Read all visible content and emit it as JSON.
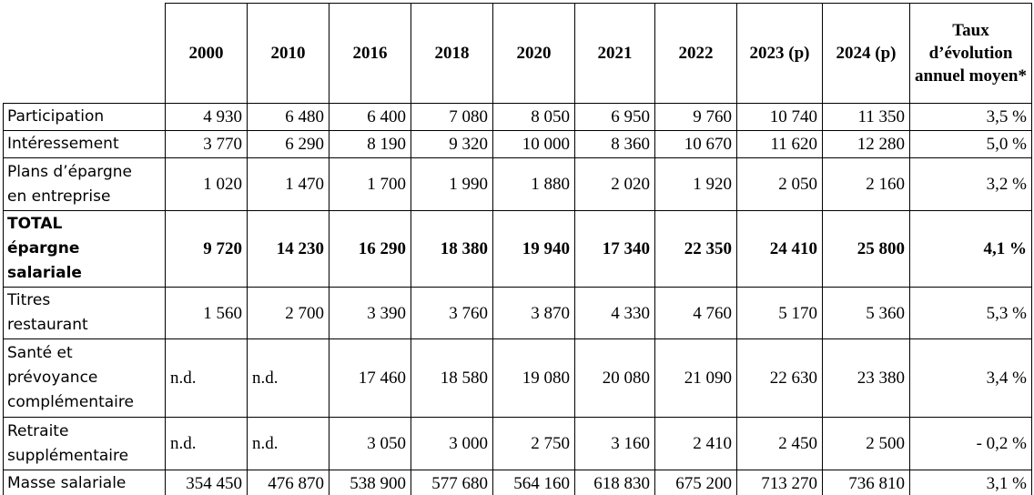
{
  "table": {
    "columns": [
      "2000",
      "2010",
      "2016",
      "2018",
      "2020",
      "2021",
      "2022",
      "2023 (p)",
      "2024 (p)",
      "Taux d’évolution annuel moyen*"
    ],
    "rows": [
      {
        "label": [
          "Participation"
        ],
        "cells": [
          "4 930",
          "6 480",
          "6 400",
          "7 080",
          "8 050",
          "6 950",
          "9 760",
          "10 740",
          "11 350",
          "3,5 %"
        ]
      },
      {
        "label": [
          "Intéressement"
        ],
        "cells": [
          "3 770",
          "6 290",
          "8 190",
          "9 320",
          "10 000",
          "8 360",
          "10 670",
          "11 620",
          "12 280",
          "5,0 %"
        ]
      },
      {
        "label": [
          "Plans d’épargne",
          "en entreprise"
        ],
        "cells": [
          "1 020",
          "1 470",
          "1 700",
          "1 990",
          "1 880",
          "2 020",
          "1 920",
          "2 050",
          "2 160",
          "3,2 %"
        ]
      },
      {
        "label": [
          "TOTAL",
          "épargne",
          "salariale"
        ],
        "bold": true,
        "cells": [
          "9 720",
          "14 230",
          "16 290",
          "18 380",
          "19 940",
          "17 340",
          "22 350",
          "24 410",
          "25 800",
          "4,1 %"
        ]
      },
      {
        "label": [
          "Titres",
          "restaurant"
        ],
        "cells": [
          "1 560",
          "2 700",
          "3 390",
          "3 760",
          "3 870",
          "4 330",
          "4 760",
          "5 170",
          "5 360",
          "5,3 %"
        ]
      },
      {
        "label": [
          "Santé et",
          "prévoyance",
          "complémentaire"
        ],
        "cells": [
          "n.d.",
          "n.d.",
          "17 460",
          "18 580",
          "19 080",
          "20 080",
          "21 090",
          "22 630",
          "23 380",
          "3,4 %"
        ]
      },
      {
        "label": [
          "Retraite",
          "supplémentaire"
        ],
        "cells": [
          "n.d.",
          "n.d.",
          "3 050",
          "3 000",
          "2 750",
          "3 160",
          "2 410",
          "2 450",
          "2 500",
          "- 0,2 %"
        ]
      },
      {
        "label": [
          "Masse salariale"
        ],
        "cells": [
          "354 450",
          "476 870",
          "538 900",
          "577 680",
          "564 160",
          "618 830",
          "675 200",
          "713 270",
          "736 810",
          "3,1 %"
        ]
      }
    ]
  }
}
